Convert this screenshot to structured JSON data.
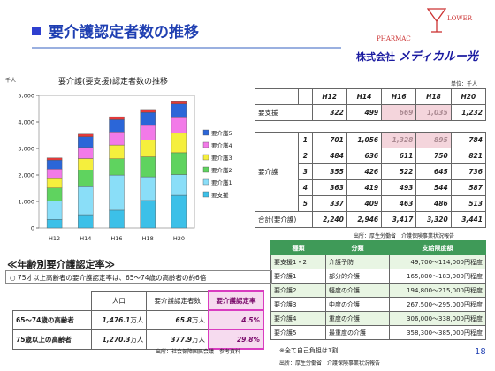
{
  "header": {
    "title": "要介護認定者数の推移",
    "logo_top": "LOWER",
    "logo_bottom": "PHARMAC",
    "company_prefix": "株式会社",
    "company_brand": "メディカルー光"
  },
  "chart_data": {
    "type": "bar",
    "stacked": true,
    "title": "要介護(要支援)認定者数の推移",
    "unit": "千人",
    "categories": [
      "H12",
      "H14",
      "H16",
      "H18",
      "H20"
    ],
    "ylim": [
      0,
      5000
    ],
    "yticks": [
      "0",
      "1,000",
      "2,000",
      "3,000",
      "4,000",
      "5,000"
    ],
    "series": [
      {
        "name": "要支援",
        "color": "#3cc0e8",
        "values": [
          322,
          499,
          669,
          1035,
          1232
        ]
      },
      {
        "name": "要介護1",
        "color": "#8adef8",
        "values": [
          701,
          1056,
          1328,
          895,
          784
        ]
      },
      {
        "name": "要介護2",
        "color": "#5fd35f",
        "values": [
          484,
          636,
          611,
          750,
          821
        ]
      },
      {
        "name": "要介護3",
        "color": "#f5ef3d",
        "values": [
          355,
          426,
          522,
          645,
          736
        ]
      },
      {
        "name": "要介護4",
        "color": "#f27ae8",
        "values": [
          363,
          419,
          493,
          544,
          587
        ]
      },
      {
        "name": "要介護5",
        "color": "#2b66d8",
        "values": [
          337,
          409,
          463,
          486,
          513
        ]
      },
      {
        "name": "",
        "color": "#e23a3a",
        "values": [
          80,
          95,
          110,
          115,
          120
        ]
      }
    ],
    "legend": [
      "要介護5",
      "要介護4",
      "要介護3",
      "要介護2",
      "要介護1",
      "要支援"
    ],
    "legend_colors": [
      "#2b66d8",
      "#f27ae8",
      "#f5ef3d",
      "#5fd35f",
      "#8adef8",
      "#3cc0e8"
    ],
    "grid": false,
    "legend_position": "right"
  },
  "cert_table": {
    "unit": "単位：千人",
    "years": [
      "H12",
      "H14",
      "H16",
      "H18",
      "H20"
    ],
    "support_label": "要支援",
    "support_values": [
      "322",
      "499",
      "669",
      "1,035",
      "1,232"
    ],
    "care_label": "要介護",
    "care_rows": [
      {
        "level": "1",
        "values": [
          "701",
          "1,056",
          "1,328",
          "895",
          "784"
        ]
      },
      {
        "level": "2",
        "values": [
          "484",
          "636",
          "611",
          "750",
          "821"
        ]
      },
      {
        "level": "3",
        "values": [
          "355",
          "426",
          "522",
          "645",
          "736"
        ]
      },
      {
        "level": "4",
        "values": [
          "363",
          "419",
          "493",
          "544",
          "587"
        ]
      },
      {
        "level": "5",
        "values": [
          "337",
          "409",
          "463",
          "486",
          "513"
        ]
      }
    ],
    "total_label": "合計(要介護)",
    "total_values": [
      "2,240",
      "2,946",
      "3,417",
      "3,320",
      "3,441"
    ],
    "source": "出所：厚生労働省　介護保険事業状況報告"
  },
  "limit_table": {
    "headers": [
      "種類",
      "分類",
      "支給限度額"
    ],
    "rows": [
      [
        "要支援1・2",
        "介護予防",
        "49,700～114,000円程度"
      ],
      [
        "要介護1",
        "部分的介護",
        "165,800～183,000円程度"
      ],
      [
        "要介護2",
        "軽度の介護",
        "194,800～215,000円程度"
      ],
      [
        "要介護3",
        "中度の介護",
        "267,500～295,000円程度"
      ],
      [
        "要介護4",
        "重度の介護",
        "306,000～338,000円程度"
      ],
      [
        "要介護5",
        "最重度の介護",
        "358,300～385,000円程度"
      ]
    ],
    "note": "※全て自己負担は1割",
    "source": "出所：厚生労働省　介護保険事業状況報告"
  },
  "age_section": {
    "heading": "≪年齢別要介護認定率≫",
    "note": "○ 75才以上高齢者の要介護認定率は、65～74歳の高齢者の約6倍",
    "headers": [
      "",
      "人口",
      "要介護認定者数",
      "要介護認定率"
    ],
    "rows": [
      {
        "label": "65～74歳の高齢者",
        "pop_value": "1,476.1",
        "pop_unit": "万人",
        "cert_value": "65.8",
        "cert_unit": "万人",
        "rate": "4.5%"
      },
      {
        "label": "75歳以上の高齢者",
        "pop_value": "1,270.3",
        "pop_unit": "万人",
        "cert_value": "377.9",
        "cert_unit": "万人",
        "rate": "29.8%"
      }
    ],
    "source": "出所：社会保障国民会議　参考資料"
  },
  "page_number": "18"
}
